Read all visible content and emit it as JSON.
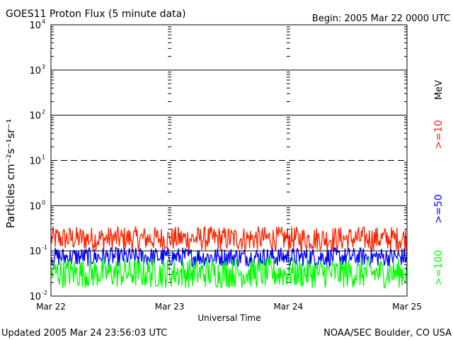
{
  "header": {
    "title": "GOES11 Proton Flux (5 minute data)",
    "begin": "Begin: 2005 Mar 22 0000 UTC"
  },
  "footer": {
    "updated": "Updated 2005 Mar 24 23:56:03 UTC",
    "credit": "NOAA/SEC Boulder, CO USA"
  },
  "chart_data": {
    "type": "line",
    "title": "GOES11 Proton Flux (5 minute data)",
    "xlabel": "Universal Time",
    "ylabel": "Particles cm⁻²s⁻¹sr⁻¹",
    "yscale": "log",
    "ylim": [
      0.01,
      10000
    ],
    "xlim": [
      "2005-03-22",
      "2005-03-25"
    ],
    "x_ticks": [
      "Mar 22",
      "Mar 23",
      "Mar 24",
      "Mar 25"
    ],
    "y_ticks": [
      {
        "base": "10",
        "exp": "4"
      },
      {
        "base": "10",
        "exp": "3"
      },
      {
        "base": "10",
        "exp": "2"
      },
      {
        "base": "10",
        "exp": "1"
      },
      {
        "base": "10",
        "exp": "0"
      },
      {
        "base": "10",
        "exp": "-1"
      },
      {
        "base": "10",
        "exp": "-2"
      }
    ],
    "threshold_lines": [
      {
        "value": 1000,
        "style": "solid"
      },
      {
        "value": 100,
        "style": "solid"
      },
      {
        "value": 10,
        "style": "dashed"
      },
      {
        "value": 1,
        "style": "solid"
      },
      {
        "value": 0.1,
        "style": "solid"
      }
    ],
    "legend_unit": "MeV",
    "legend_position": "right",
    "series": [
      {
        "name": ">=10",
        "color": "#ff2200",
        "level_range": [
          0.1,
          0.35
        ]
      },
      {
        "name": ">=50",
        "color": "#0000ff",
        "level_range": [
          0.045,
          0.12
        ]
      },
      {
        "name": ">=100",
        "color": "#00ff00",
        "level_range": [
          0.015,
          0.07
        ]
      }
    ]
  }
}
